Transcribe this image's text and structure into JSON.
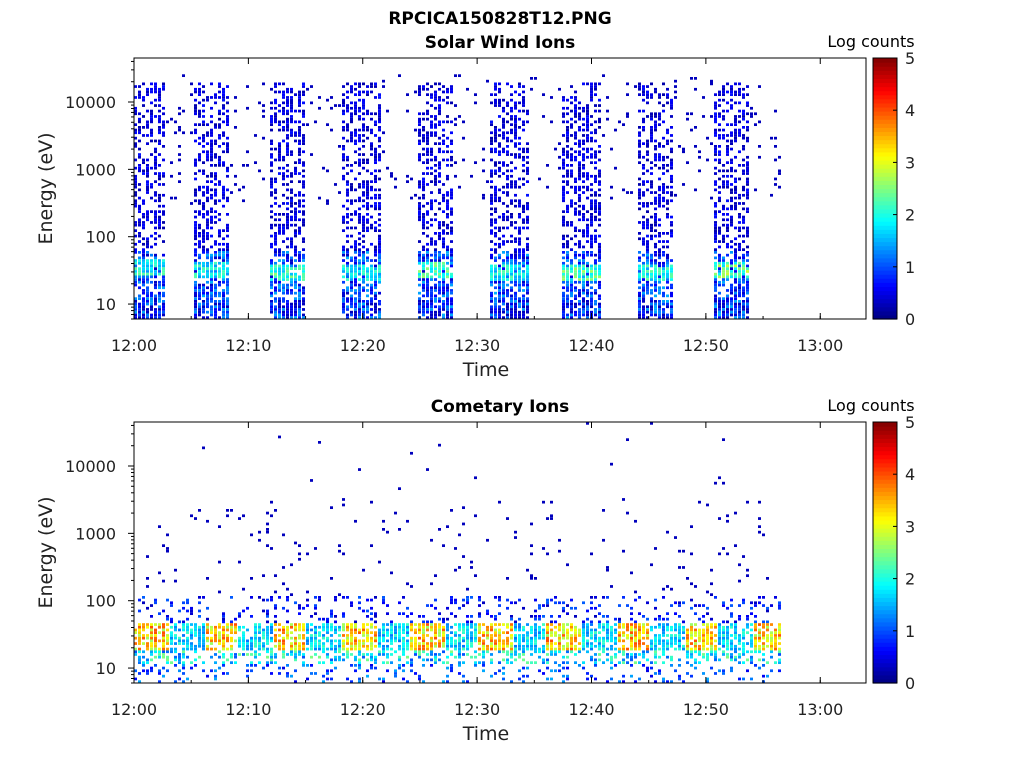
{
  "figure": {
    "title": "RPCICA150828T12.PNG"
  },
  "chart_data": [
    {
      "type": "heatmap",
      "title": "Solar Wind Ions",
      "xlabel": "Time",
      "ylabel": "Energy (eV)",
      "x_ticks": [
        "12:00",
        "12:10",
        "12:20",
        "12:30",
        "12:40",
        "12:50",
        "13:00"
      ],
      "x_range": [
        "12:00",
        "13:04"
      ],
      "y_scale": "log",
      "y_ticks": [
        10,
        100,
        1000,
        10000
      ],
      "y_range": [
        6,
        45000
      ],
      "colorbar": {
        "label": "Log counts",
        "ticks": [
          0,
          1,
          2,
          3,
          4,
          5
        ],
        "range": [
          0,
          5
        ],
        "colormap": "jet"
      },
      "data_window": [
        "12:00",
        "12:56"
      ],
      "sweep_periods_min": [
        {
          "start": 0.0,
          "end": 2.5,
          "peak_energy_eV": 35,
          "peak_log_counts": 2.4
        },
        {
          "start": 5.2,
          "end": 8.2,
          "peak_energy_eV": 32,
          "peak_log_counts": 2.3
        },
        {
          "start": 11.6,
          "end": 15.0,
          "peak_energy_eV": 30,
          "peak_log_counts": 2.6
        },
        {
          "start": 18.0,
          "end": 21.4,
          "peak_energy_eV": 30,
          "peak_log_counts": 2.2
        },
        {
          "start": 24.6,
          "end": 27.8,
          "peak_energy_eV": 33,
          "peak_log_counts": 2.8
        },
        {
          "start": 31.0,
          "end": 34.4,
          "peak_energy_eV": 28,
          "peak_log_counts": 2.3
        },
        {
          "start": 37.4,
          "end": 40.8,
          "peak_energy_eV": 30,
          "peak_log_counts": 2.7
        },
        {
          "start": 43.8,
          "end": 47.2,
          "peak_energy_eV": 30,
          "peak_log_counts": 2.4
        },
        {
          "start": 50.4,
          "end": 53.8,
          "peak_energy_eV": 32,
          "peak_log_counts": 2.9
        }
      ],
      "background_log_counts": 0.3
    },
    {
      "type": "heatmap",
      "title": "Cometary Ions",
      "xlabel": "Time",
      "ylabel": "Energy (eV)",
      "x_ticks": [
        "12:00",
        "12:10",
        "12:20",
        "12:30",
        "12:40",
        "12:50",
        "13:00"
      ],
      "x_range": [
        "12:00",
        "13:04"
      ],
      "y_scale": "log",
      "y_ticks": [
        10,
        100,
        1000,
        10000
      ],
      "y_range": [
        6,
        45000
      ],
      "colorbar": {
        "label": "Log counts",
        "ticks": [
          0,
          1,
          2,
          3,
          4,
          5
        ],
        "range": [
          0,
          5
        ],
        "colormap": "jet"
      },
      "data_window": [
        "12:00",
        "12:56"
      ],
      "main_band_eV": [
        18,
        45
      ],
      "peak_log_counts": 4.0,
      "background_log_counts": 0.3
    }
  ]
}
